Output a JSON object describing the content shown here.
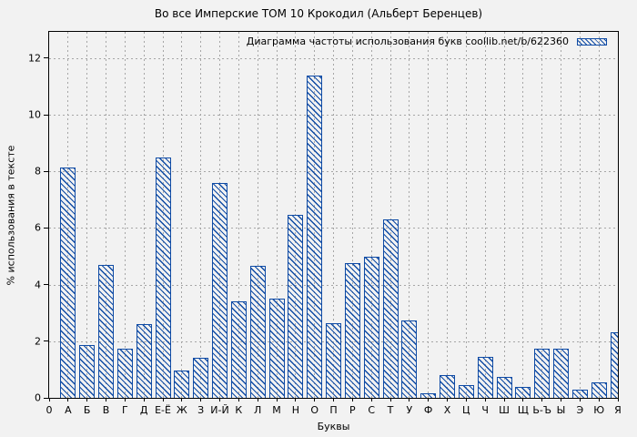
{
  "window": {
    "background": "#f2f2f2"
  },
  "chart_data": {
    "type": "bar",
    "title": "Во все Имперские ТОМ 10 Крокодил (Альберт Беренцев)",
    "legend": {
      "label": "Диаграмма частоты использования букв coollib.net/b/622360",
      "position": "top-right-inside"
    },
    "xlabel": "Буквы",
    "ylabel": "% использования в тексте",
    "x_origin_tick": "0",
    "categories": [
      "А",
      "Б",
      "В",
      "Г",
      "Д",
      "Е-Ё",
      "Ж",
      "З",
      "И-Й",
      "К",
      "Л",
      "М",
      "Н",
      "О",
      "П",
      "Р",
      "С",
      "Т",
      "У",
      "Ф",
      "Х",
      "Ц",
      "Ч",
      "Ш",
      "Щ",
      "Ь-Ъ",
      "Ы",
      "Э",
      "Ю",
      "Я"
    ],
    "values": [
      8.15,
      1.85,
      4.7,
      1.75,
      2.6,
      8.5,
      0.95,
      1.4,
      7.6,
      3.4,
      4.65,
      3.5,
      6.45,
      11.4,
      2.65,
      4.75,
      5.0,
      6.3,
      2.75,
      0.15,
      0.8,
      0.45,
      1.45,
      0.75,
      0.4,
      1.75,
      1.75,
      0.3,
      0.55,
      2.3
    ],
    "y_ticks": [
      0,
      2,
      4,
      6,
      8,
      10,
      12
    ],
    "ylim": [
      0,
      12.93
    ],
    "grid": true,
    "last_bar_clipped_at_right_border": true,
    "bar_color": "#0f4ba5",
    "grid_color": "#a6a6a6",
    "axis_color": "#000000"
  }
}
